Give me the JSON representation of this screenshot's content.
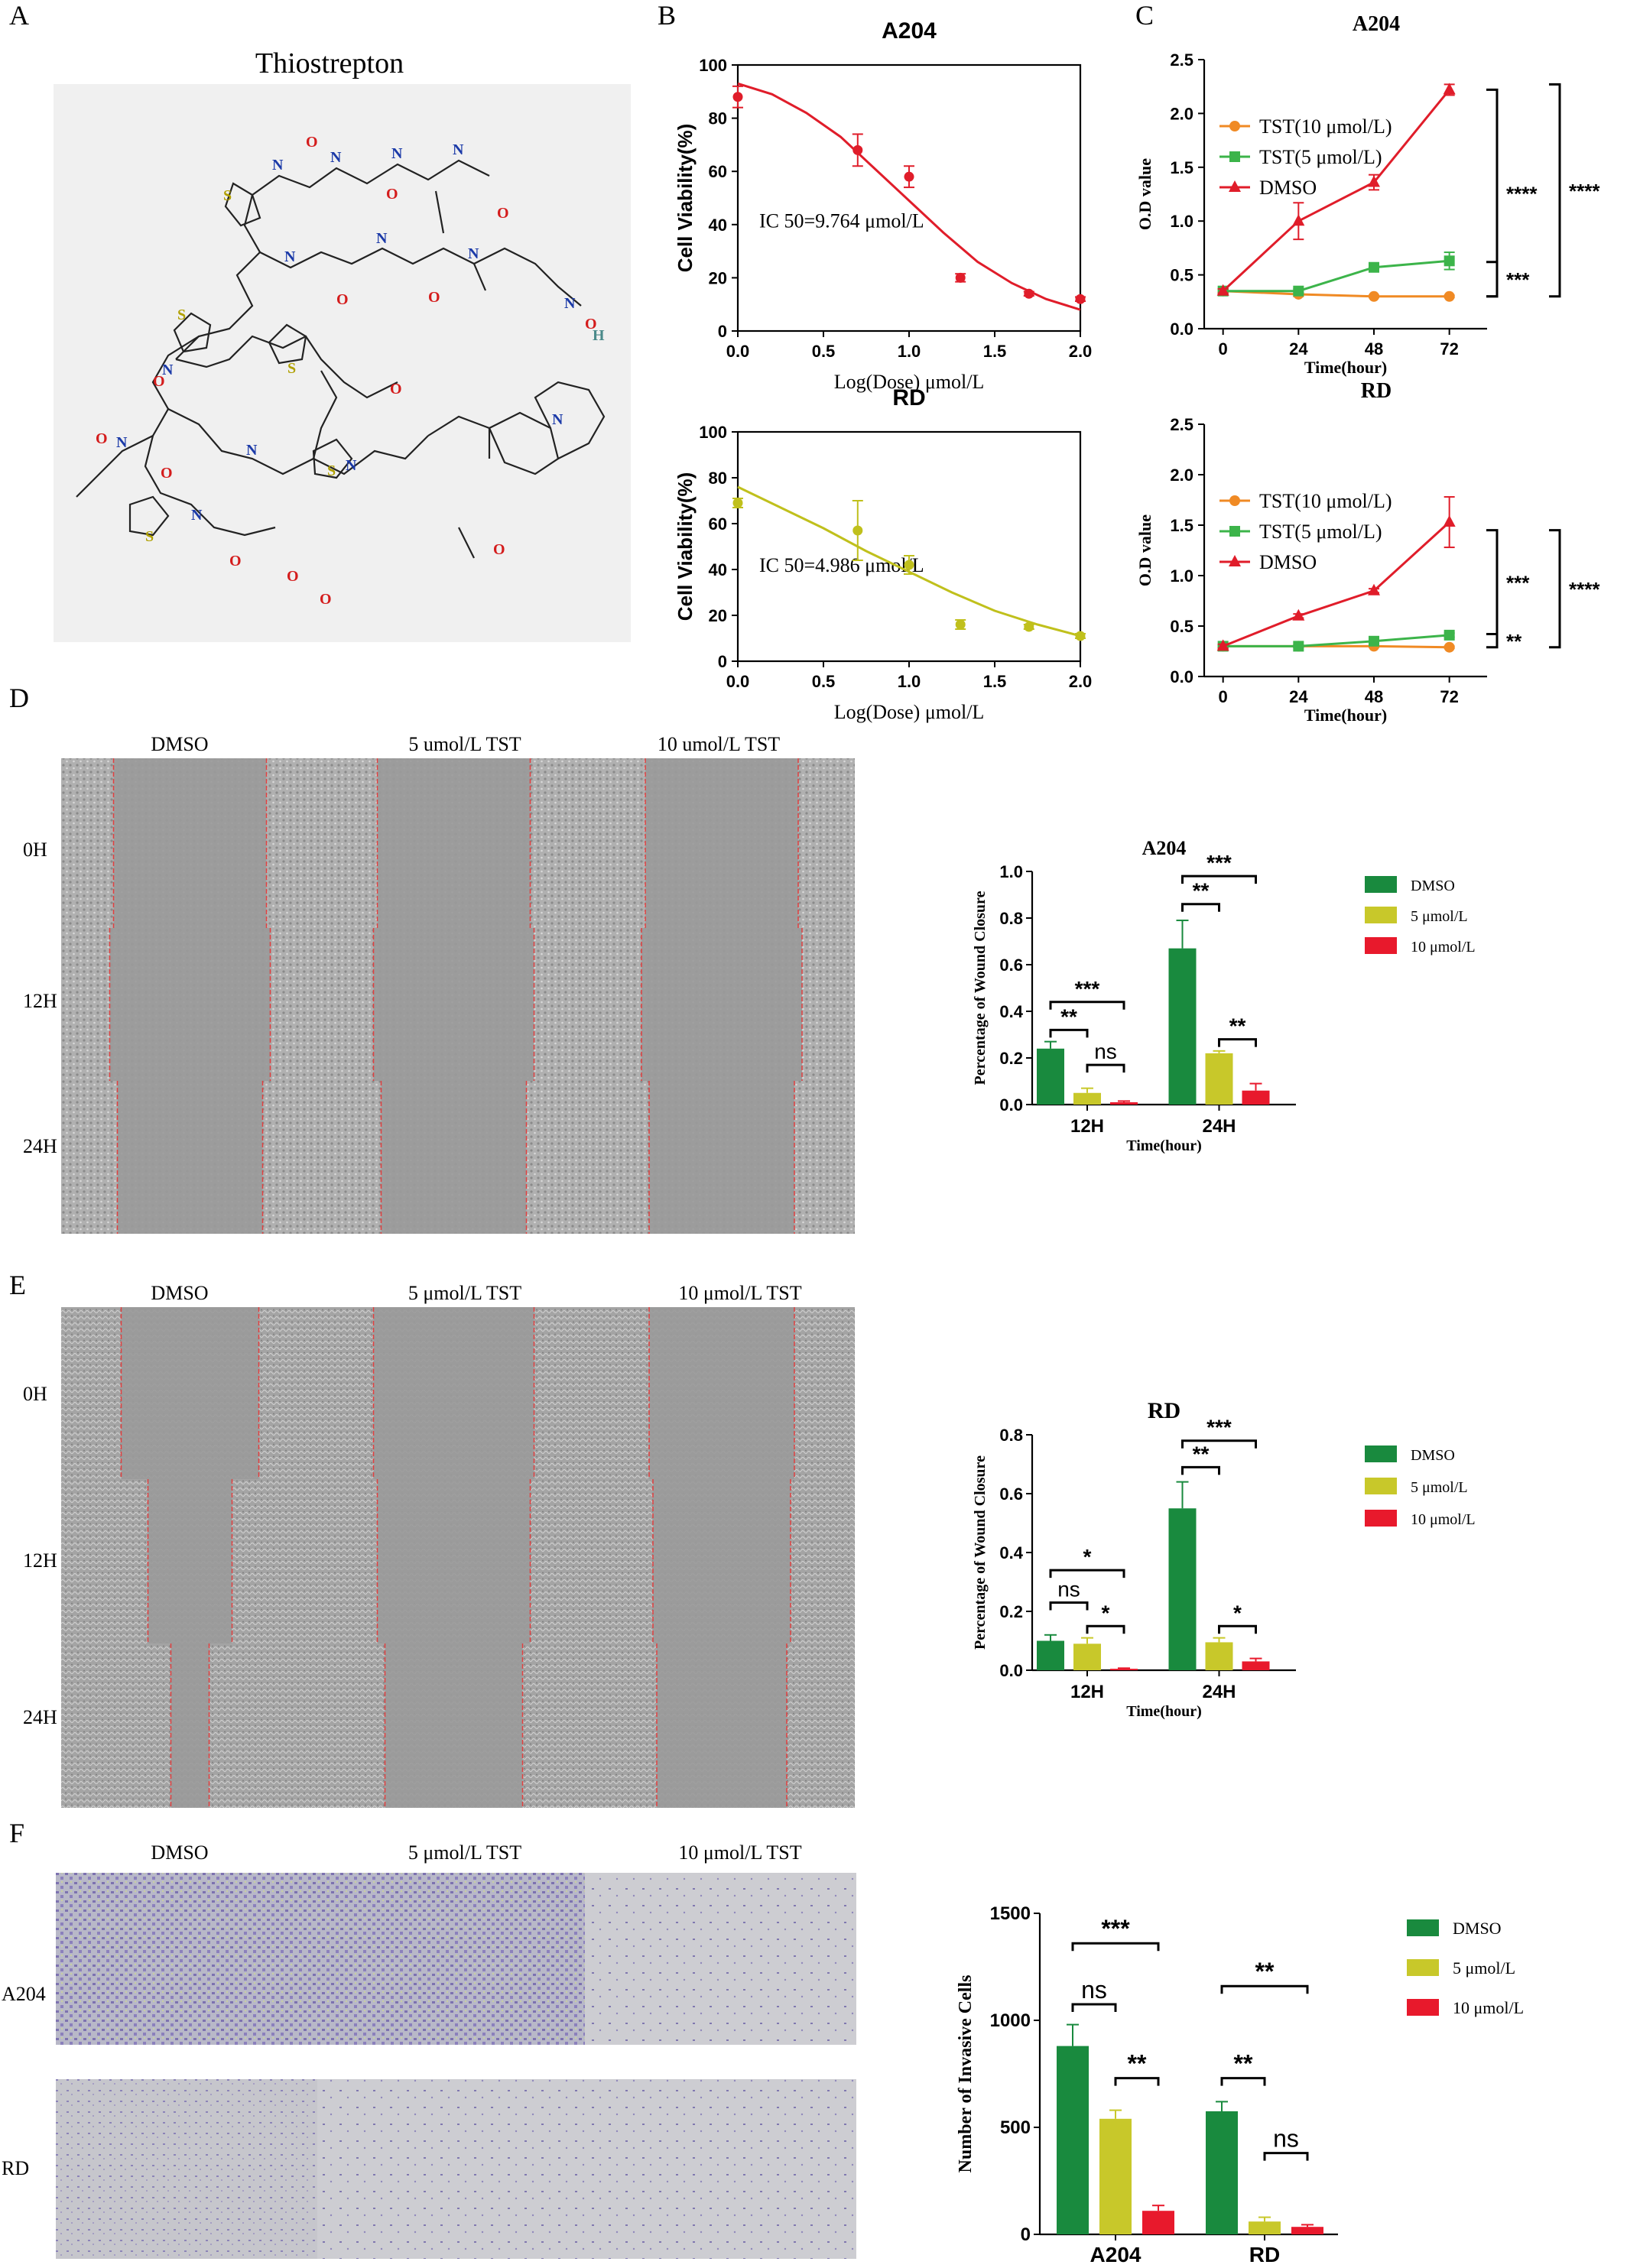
{
  "panel_letters": [
    "A",
    "B",
    "C",
    "D",
    "E",
    "F"
  ],
  "structure": {
    "title": "Thiostrepton",
    "atoms": [
      "N",
      "O",
      "S",
      "H"
    ]
  },
  "micrographs": {
    "columns": [
      "DMSO",
      "5 umol/L TST",
      "10 umol/L TST"
    ],
    "columns_micro": [
      "DMSO",
      "5 μmol/L TST",
      "10 μmol/L TST"
    ],
    "rows_time": [
      "0H",
      "12H",
      "24H"
    ],
    "rows_cells": [
      "A204",
      "RD"
    ]
  },
  "colors": {
    "dark_green": "#198a3e",
    "olive": "#c8c82a",
    "red": "#e8192c",
    "curve_red": "#e01d2a",
    "curve_olive": "#c0c01c",
    "orange": "#f08a24",
    "green": "#3cb44a",
    "triangle_red": "#e01d2a",
    "photo_gray": "#a8a8a8",
    "photo_purple": "#8c84b8"
  },
  "chart_data": [
    {
      "id": "B-A204",
      "type": "scatter",
      "title": "A204",
      "xlabel": "Log(Dose) μmol/L",
      "ylabel": "Cell Viability(%)",
      "xlim": [
        0,
        2
      ],
      "ylim": [
        0,
        100
      ],
      "xticks": [
        "0.0",
        "0.5",
        "1.0",
        "1.5",
        "2.0"
      ],
      "yticks": [
        "0",
        "20",
        "40",
        "60",
        "80",
        "100"
      ],
      "annotation": "IC 50=9.764 μmol/L",
      "points": [
        {
          "x": 0.0,
          "y": 88,
          "err": 4
        },
        {
          "x": 0.7,
          "y": 68,
          "err": 6
        },
        {
          "x": 1.0,
          "y": 58,
          "err": 4
        },
        {
          "x": 1.3,
          "y": 20,
          "err": 1.5
        },
        {
          "x": 1.7,
          "y": 14,
          "err": 0.8
        },
        {
          "x": 2.0,
          "y": 12,
          "err": 0.8
        }
      ],
      "curve": [
        [
          0,
          93
        ],
        [
          0.2,
          89
        ],
        [
          0.4,
          82
        ],
        [
          0.6,
          73
        ],
        [
          0.8,
          61
        ],
        [
          1.0,
          49
        ],
        [
          1.2,
          37
        ],
        [
          1.4,
          26
        ],
        [
          1.6,
          18
        ],
        [
          1.8,
          12
        ],
        [
          2.0,
          8
        ]
      ]
    },
    {
      "id": "B-RD",
      "type": "scatter",
      "title": "RD",
      "xlabel": "Log(Dose) μmol/L",
      "ylabel": "Cell Viability(%)",
      "xlim": [
        0,
        2
      ],
      "ylim": [
        0,
        100
      ],
      "xticks": [
        "0.0",
        "0.5",
        "1.0",
        "1.5",
        "2.0"
      ],
      "yticks": [
        "0",
        "20",
        "40",
        "60",
        "80",
        "100"
      ],
      "annotation": "IC 50=4.986 μmol/L",
      "points": [
        {
          "x": 0.0,
          "y": 69,
          "err": 2
        },
        {
          "x": 0.7,
          "y": 57,
          "err": 13
        },
        {
          "x": 1.0,
          "y": 42,
          "err": 4
        },
        {
          "x": 1.3,
          "y": 16,
          "err": 2
        },
        {
          "x": 1.7,
          "y": 15,
          "err": 1
        },
        {
          "x": 2.0,
          "y": 11,
          "err": 1
        }
      ],
      "curve": [
        [
          0,
          76
        ],
        [
          0.25,
          67
        ],
        [
          0.5,
          58
        ],
        [
          0.75,
          48
        ],
        [
          1.0,
          39
        ],
        [
          1.25,
          30
        ],
        [
          1.5,
          22
        ],
        [
          1.75,
          16
        ],
        [
          2.0,
          11
        ]
      ]
    },
    {
      "id": "C-A204",
      "type": "line",
      "title": "A204",
      "xlabel": "Time(hour)",
      "ylabel": "O.D value",
      "x": [
        0,
        24,
        48,
        72
      ],
      "ylim": [
        0,
        2.5
      ],
      "yticks": [
        "0.0",
        "0.5",
        "1.0",
        "1.5",
        "2.0",
        "2.5"
      ],
      "xticks": [
        "0",
        "24",
        "48",
        "72"
      ],
      "series": [
        {
          "name": "TST(10 μmol/L)",
          "values": [
            0.35,
            0.32,
            0.3,
            0.3
          ],
          "err": [
            0.02,
            0.02,
            0.01,
            0.01
          ],
          "marker": "circle"
        },
        {
          "name": "TST(5 μmol/L)",
          "values": [
            0.35,
            0.35,
            0.57,
            0.63
          ],
          "err": [
            0.02,
            0.02,
            0.03,
            0.08
          ],
          "marker": "square"
        },
        {
          "name": "DMSO",
          "values": [
            0.35,
            1.0,
            1.36,
            2.22
          ],
          "err": [
            0.02,
            0.17,
            0.07,
            0.05
          ],
          "marker": "triangle"
        }
      ],
      "significance": [
        {
          "label": "****",
          "kind": "DMSO vs TST(10 μmol/L)"
        },
        {
          "label": "****",
          "kind": "DMSO vs TST(5 μmol/L)"
        },
        {
          "label": "***",
          "kind": "TST(5 μmol/L) vs TST(10 μmol/L)"
        }
      ]
    },
    {
      "id": "C-RD",
      "type": "line",
      "title": "RD",
      "xlabel": "Time(hour)",
      "ylabel": "O.D value",
      "x": [
        0,
        24,
        48,
        72
      ],
      "ylim": [
        0,
        2.5
      ],
      "yticks": [
        "0.0",
        "0.5",
        "1.0",
        "1.5",
        "2.0",
        "2.5"
      ],
      "xticks": [
        "0",
        "24",
        "48",
        "72"
      ],
      "series": [
        {
          "name": "TST(10 μmol/L)",
          "values": [
            0.3,
            0.3,
            0.3,
            0.29
          ],
          "err": [
            0.01,
            0.01,
            0.01,
            0.01
          ],
          "marker": "circle"
        },
        {
          "name": "TST(5 μmol/L)",
          "values": [
            0.3,
            0.3,
            0.35,
            0.41
          ],
          "err": [
            0.01,
            0.01,
            0.02,
            0.02
          ],
          "marker": "square"
        },
        {
          "name": "DMSO",
          "values": [
            0.3,
            0.6,
            0.85,
            1.53
          ],
          "err": [
            0.02,
            0.02,
            0.02,
            0.25
          ],
          "marker": "triangle"
        }
      ],
      "significance": [
        {
          "label": "***",
          "kind": "DMSO vs TST(5 μmol/L)"
        },
        {
          "label": "****",
          "kind": "DMSO vs TST(10 μmol/L)"
        },
        {
          "label": "**",
          "kind": "TST(5 μmol/L) vs TST(10 μmol/L)"
        }
      ]
    },
    {
      "id": "D-A204",
      "type": "bar",
      "title": "A204",
      "xlabel": "Time(hour)",
      "ylabel": "Percentage of Wound Closure",
      "categories": [
        "12H",
        "24H"
      ],
      "ylim": [
        0,
        1.0
      ],
      "yticks": [
        "0.0",
        "0.2",
        "0.4",
        "0.6",
        "0.8",
        "1.0"
      ],
      "series": [
        {
          "name": "DMSO",
          "values": [
            0.24,
            0.67
          ],
          "err": [
            0.03,
            0.12
          ]
        },
        {
          "name": "5 μmol/L",
          "values": [
            0.05,
            0.22
          ],
          "err": [
            0.02,
            0.01
          ]
        },
        {
          "name": "10 μmol/L",
          "values": [
            0.01,
            0.06
          ],
          "err": [
            0.005,
            0.03
          ]
        }
      ],
      "significance": [
        {
          "cat": 0,
          "from": 0,
          "to": 2,
          "level": 0.44,
          "label": "***"
        },
        {
          "cat": 0,
          "from": 0,
          "to": 1,
          "level": 0.32,
          "label": "**"
        },
        {
          "cat": 0,
          "from": 1,
          "to": 2,
          "level": 0.17,
          "label": "ns"
        },
        {
          "cat": 1,
          "from": 0,
          "to": 2,
          "level": 0.98,
          "label": "***"
        },
        {
          "cat": 1,
          "from": 0,
          "to": 1,
          "level": 0.86,
          "label": "**"
        },
        {
          "cat": 1,
          "from": 1,
          "to": 2,
          "level": 0.28,
          "label": "**"
        }
      ]
    },
    {
      "id": "E-RD",
      "type": "bar",
      "title": "RD",
      "xlabel": "Time(hour)",
      "ylabel": "Percentage of Wound Closure",
      "categories": [
        "12H",
        "24H"
      ],
      "ylim": [
        0,
        0.8
      ],
      "yticks": [
        "0.0",
        "0.2",
        "0.4",
        "0.6",
        "0.8"
      ],
      "series": [
        {
          "name": "DMSO",
          "values": [
            0.1,
            0.55
          ],
          "err": [
            0.02,
            0.09
          ]
        },
        {
          "name": "5 μmol/L",
          "values": [
            0.09,
            0.095
          ],
          "err": [
            0.02,
            0.015
          ]
        },
        {
          "name": "10 μmol/L",
          "values": [
            0.005,
            0.03
          ],
          "err": [
            0.002,
            0.01
          ]
        }
      ],
      "significance": [
        {
          "cat": 0,
          "from": 0,
          "to": 2,
          "level": 0.34,
          "label": "*"
        },
        {
          "cat": 0,
          "from": 0,
          "to": 1,
          "level": 0.23,
          "label": "ns"
        },
        {
          "cat": 0,
          "from": 1,
          "to": 2,
          "level": 0.15,
          "label": "*"
        },
        {
          "cat": 1,
          "from": 0,
          "to": 2,
          "level": 0.78,
          "label": "***"
        },
        {
          "cat": 1,
          "from": 0,
          "to": 1,
          "level": 0.69,
          "label": "**"
        },
        {
          "cat": 1,
          "from": 1,
          "to": 2,
          "level": 0.15,
          "label": "*"
        }
      ]
    },
    {
      "id": "F",
      "type": "bar",
      "title": "",
      "xlabel": "",
      "ylabel": "Number of Invasive Cells",
      "categories": [
        "A204",
        "RD"
      ],
      "ylim": [
        0,
        1500
      ],
      "yticks": [
        "0",
        "500",
        "1000",
        "1500"
      ],
      "series": [
        {
          "name": "DMSO",
          "values": [
            880,
            575
          ],
          "err": [
            100,
            45
          ]
        },
        {
          "name": "5 μmol/L",
          "values": [
            540,
            60
          ],
          "err": [
            40,
            20
          ]
        },
        {
          "name": "10 μmol/L",
          "values": [
            110,
            35
          ],
          "err": [
            25,
            10
          ]
        }
      ],
      "significance": [
        {
          "cat": 0,
          "from": 0,
          "to": 2,
          "level": 1360,
          "label": "***"
        },
        {
          "cat": 0,
          "from": 0,
          "to": 1,
          "level": 1075,
          "label": "ns"
        },
        {
          "cat": 0,
          "from": 1,
          "to": 2,
          "level": 730,
          "label": "**"
        },
        {
          "cat": 1,
          "from": 0,
          "to": 2,
          "level": 1160,
          "label": "**"
        },
        {
          "cat": 1,
          "from": 0,
          "to": 1,
          "level": 730,
          "label": "**"
        },
        {
          "cat": 1,
          "from": 1,
          "to": 2,
          "level": 380,
          "label": "ns"
        }
      ]
    }
  ]
}
